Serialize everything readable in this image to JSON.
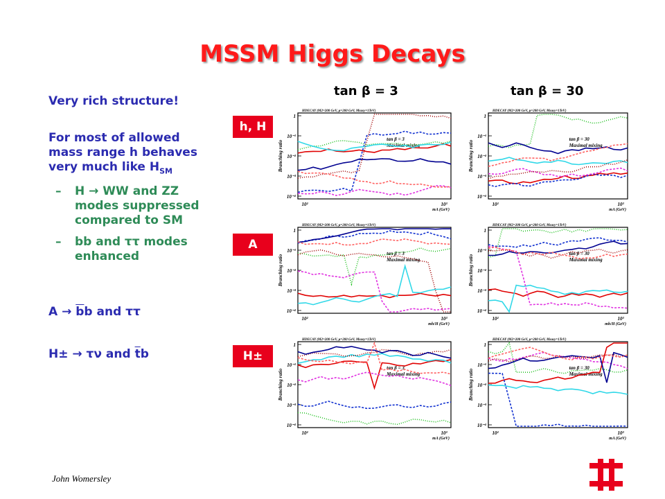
{
  "title": "MSSM Higgs Decays",
  "intro": "Very rich structure!",
  "point1": [
    "For most of allowed",
    "mass range h behaves",
    "very much like H",
    "SM"
  ],
  "sub1": [
    "H → WW and ZZ",
    "modes suppressed",
    "compared to SM"
  ],
  "sub2": [
    "bb and ττ modes",
    "enhanced"
  ],
  "dash": "–",
  "a_line": [
    "A → ",
    "b",
    "b and ττ"
  ],
  "h_line": [
    "H± → τν and ",
    "t",
    "b"
  ],
  "columns": [
    "tan β = 3",
    "tan β = 30"
  ],
  "rows": [
    "h, H",
    "A",
    "H±"
  ],
  "plots": {
    "y_axis_label": "Branching ratio",
    "y_tick_labels": [
      "1",
      "10⁻¹",
      "10⁻²",
      "10⁻³",
      "10⁻⁴"
    ],
    "x_tick_labels": [
      "10²",
      "10³"
    ],
    "x_axis_labels": [
      "mA (GeV)",
      "mh/H (GeV)",
      "mA (GeV)"
    ],
    "header": "HDECAY (M2=200 GeV, μ=200 GeV, Msusy=1TeV)",
    "annotations": [
      [
        "tan β = 3",
        "Maximal mixing"
      ],
      [
        "tan β = 30",
        "Maximal mixing"
      ]
    ]
  },
  "footer": "John Womersley"
}
